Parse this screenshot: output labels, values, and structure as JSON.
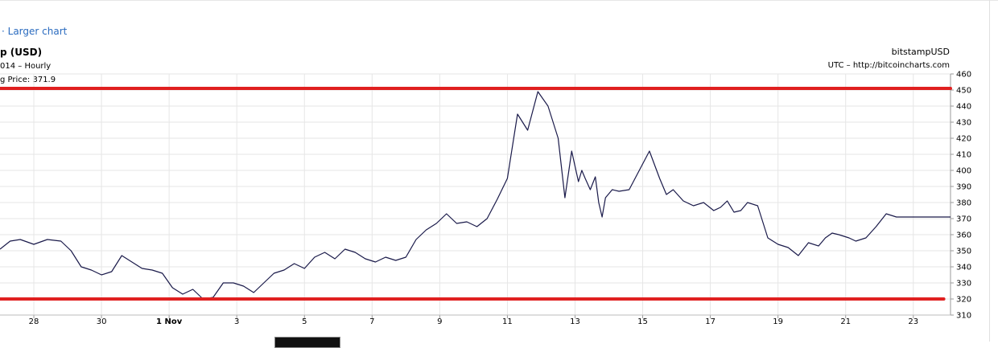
{
  "header": {
    "larger_chart_link": "· Larger chart",
    "title": "p (USD)",
    "subtitle": "014 – Hourly",
    "last_price": "g Price: 371.9",
    "source_name": "bitstampUSD",
    "source_url": "UTC – http://bitcoincharts.com"
  },
  "chart_data": {
    "type": "line",
    "title": "p (USD)",
    "xlabel": "",
    "ylabel": "",
    "ylim": [
      310,
      460
    ],
    "yticks": [
      310,
      320,
      330,
      340,
      350,
      360,
      370,
      380,
      390,
      400,
      410,
      420,
      430,
      440,
      450,
      460
    ],
    "xlim": [
      27.0,
      55.1
    ],
    "xticks": [
      {
        "label": "28",
        "x": 28,
        "bold": false
      },
      {
        "label": "30",
        "x": 30,
        "bold": false
      },
      {
        "label": "1 Nov",
        "x": 32,
        "bold": true
      },
      {
        "label": "3",
        "x": 34,
        "bold": false
      },
      {
        "label": "5",
        "x": 36,
        "bold": false
      },
      {
        "label": "7",
        "x": 38,
        "bold": false
      },
      {
        "label": "9",
        "x": 40,
        "bold": false
      },
      {
        "label": "11",
        "x": 42,
        "bold": false
      },
      {
        "label": "13",
        "x": 44,
        "bold": false
      },
      {
        "label": "15",
        "x": 46,
        "bold": false
      },
      {
        "label": "17",
        "x": 48,
        "bold": false
      },
      {
        "label": "19",
        "x": 50,
        "bold": false
      },
      {
        "label": "21",
        "x": 52,
        "bold": false
      },
      {
        "label": "23",
        "x": 54,
        "bold": false
      }
    ],
    "grid": true,
    "series": [
      {
        "color": "#1a1a4a",
        "x": [
          27.0,
          27.3,
          27.6,
          28.0,
          28.4,
          28.8,
          29.1,
          29.4,
          29.7,
          30.0,
          30.3,
          30.6,
          30.9,
          31.2,
          31.5,
          31.8,
          32.1,
          32.4,
          32.7,
          33.0,
          33.3,
          33.6,
          33.9,
          34.2,
          34.5,
          34.8,
          35.1,
          35.4,
          35.7,
          36.0,
          36.3,
          36.6,
          36.9,
          37.2,
          37.5,
          37.8,
          38.1,
          38.4,
          38.7,
          39.0,
          39.3,
          39.6,
          39.9,
          40.2,
          40.5,
          40.8,
          41.1,
          41.4,
          41.7,
          42.0,
          42.3,
          42.6,
          42.9,
          43.2,
          43.5,
          43.7,
          43.9,
          44.1,
          44.2,
          44.3,
          44.45,
          44.6,
          44.7,
          44.8,
          44.9,
          45.1,
          45.3,
          45.6,
          45.9,
          46.2,
          46.5,
          46.7,
          46.9,
          47.2,
          47.5,
          47.8,
          48.1,
          48.3,
          48.5,
          48.7,
          48.9,
          49.1,
          49.4,
          49.7,
          50.0,
          50.3,
          50.6,
          50.9,
          51.2,
          51.4,
          51.6,
          51.8,
          52.1,
          52.3,
          52.6,
          52.9,
          53.2,
          53.5,
          53.8,
          54.1,
          54.4,
          54.7,
          54.9,
          55.1
        ],
        "y": [
          351,
          356,
          357,
          354,
          357,
          356,
          350,
          340,
          338,
          335,
          337,
          347,
          343,
          339,
          338,
          336,
          327,
          323,
          326,
          320,
          321,
          330,
          330,
          328,
          324,
          330,
          336,
          338,
          342,
          339,
          346,
          349,
          345,
          351,
          349,
          345,
          343,
          346,
          344,
          346,
          357,
          363,
          367,
          373,
          367,
          368,
          365,
          370,
          382,
          395,
          435,
          425,
          449,
          440,
          420,
          383,
          412,
          393,
          400,
          395,
          388,
          396,
          380,
          371,
          383,
          388,
          387,
          388,
          400,
          412,
          395,
          385,
          388,
          381,
          378,
          380,
          375,
          377,
          381,
          374,
          375,
          380,
          378,
          358,
          354,
          352,
          347,
          355,
          353,
          358,
          361,
          360,
          358,
          356,
          358,
          365,
          373,
          371,
          371,
          371,
          371,
          371,
          371,
          371
        ]
      }
    ],
    "annotations": [
      {
        "type": "hline",
        "color": "#e02020",
        "y": 451,
        "x0": 27.0,
        "x1": 55.1
      },
      {
        "type": "hline",
        "color": "#e02020",
        "y": 320,
        "x0": 27.0,
        "x1": 54.9
      }
    ]
  }
}
